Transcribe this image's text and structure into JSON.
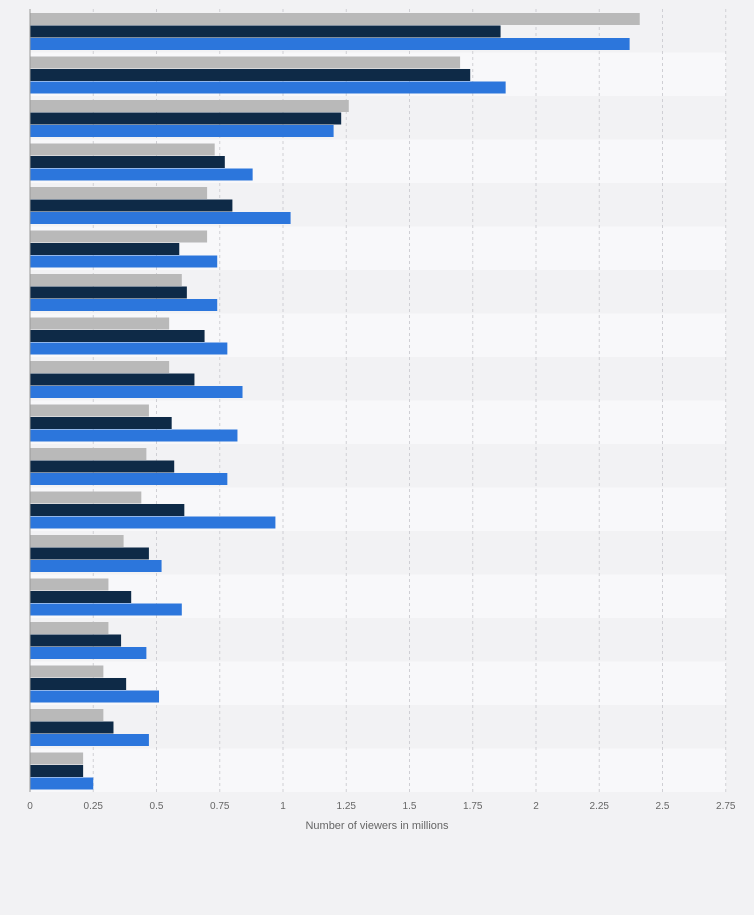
{
  "chart_data": {
    "type": "bar",
    "orientation": "horizontal",
    "title": "",
    "xlabel": "Number of viewers in millions",
    "ylabel": "",
    "xlim": [
      0,
      2.75
    ],
    "x_ticks": [
      "0",
      "0.25",
      "0.5",
      "0.75",
      "1",
      "1.25",
      "1.5",
      "1.75",
      "2",
      "2.25",
      "2.5",
      "2.75"
    ],
    "grid": true,
    "legend": "none",
    "categories": [
      "",
      "",
      "",
      "",
      "",
      "",
      "",
      "",
      "",
      "",
      "",
      "",
      "",
      "",
      "",
      "",
      "",
      ""
    ],
    "series": [
      {
        "color": "#b9b9b9",
        "values": [
          2.41,
          1.7,
          1.26,
          0.73,
          0.7,
          0.7,
          0.6,
          0.55,
          0.55,
          0.47,
          0.46,
          0.44,
          0.37,
          0.31,
          0.31,
          0.29,
          0.29,
          0.21
        ]
      },
      {
        "color": "#0e2a47",
        "values": [
          1.86,
          1.74,
          1.23,
          0.77,
          0.8,
          0.59,
          0.62,
          0.69,
          0.65,
          0.56,
          0.57,
          0.61,
          0.47,
          0.4,
          0.36,
          0.38,
          0.33,
          0.21
        ]
      },
      {
        "color": "#2c76dc",
        "values": [
          2.37,
          1.88,
          1.2,
          0.88,
          1.03,
          0.74,
          0.74,
          0.78,
          0.84,
          0.82,
          0.78,
          0.97,
          0.52,
          0.6,
          0.46,
          0.51,
          0.47,
          0.25
        ]
      }
    ]
  }
}
